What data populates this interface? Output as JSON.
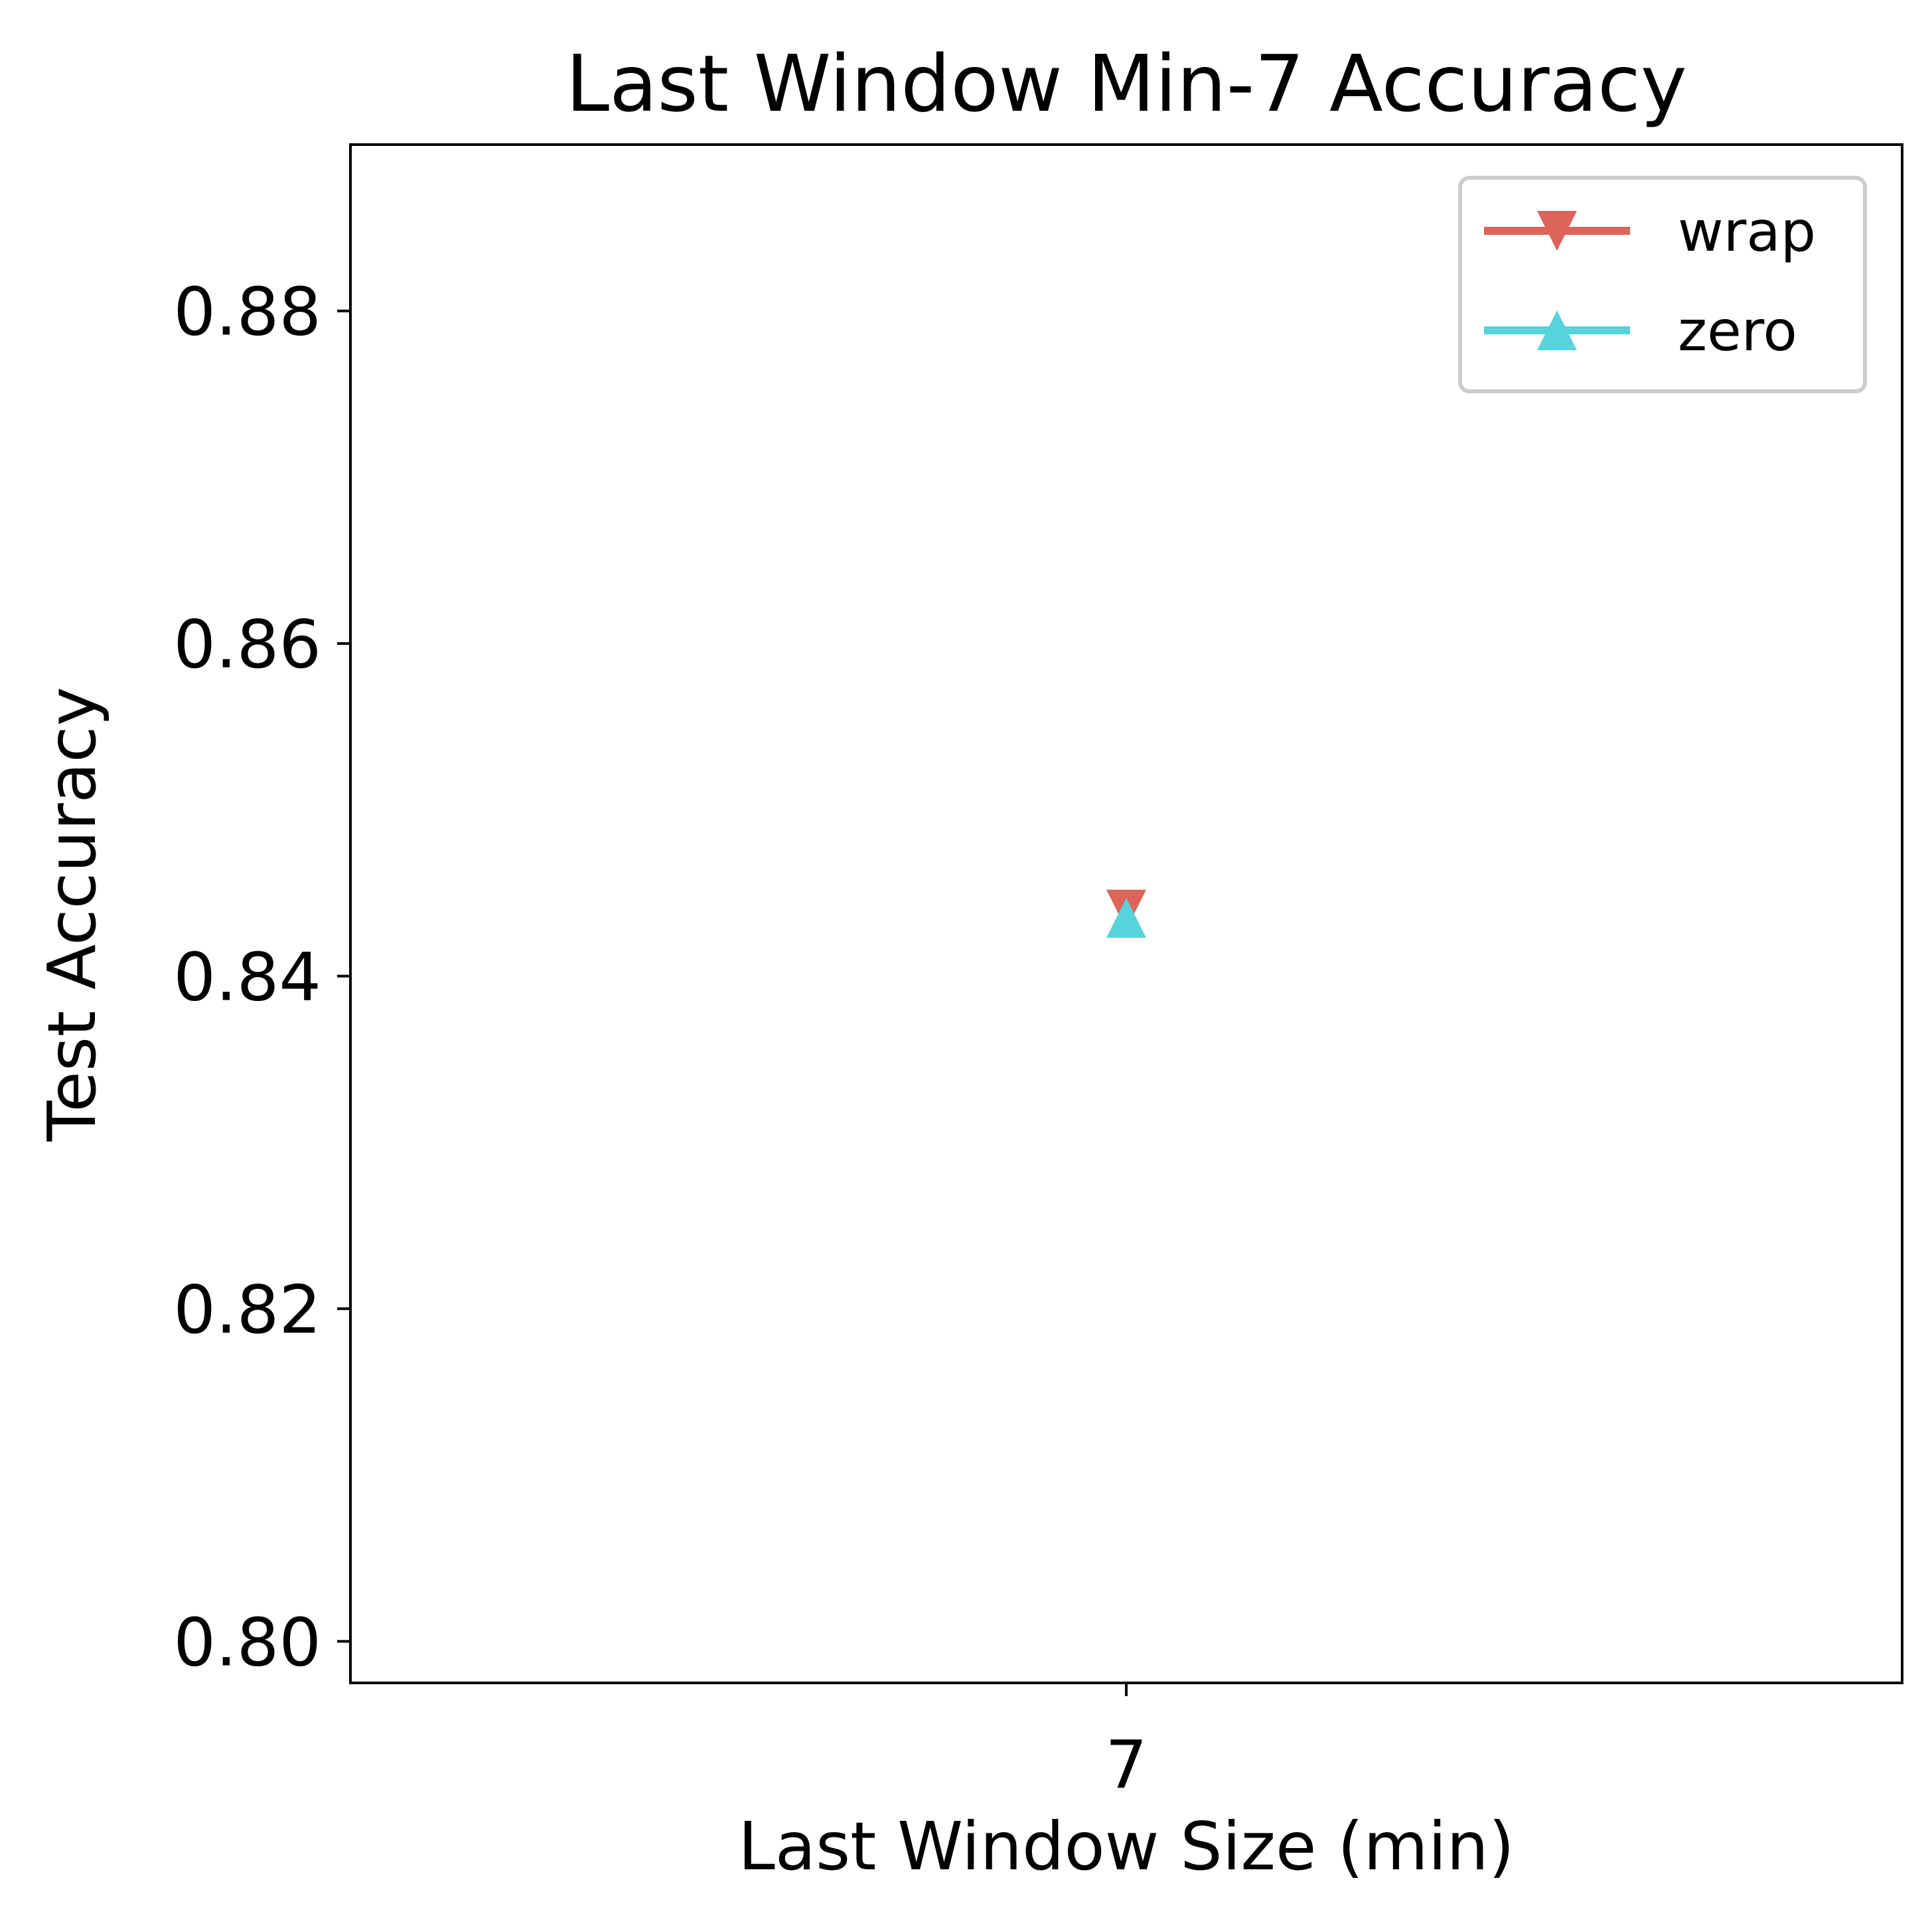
{
  "chart_data": {
    "type": "line",
    "title": "Last Window Min-7 Accuracy",
    "xlabel": "Last Window Size (min)",
    "ylabel": "Test Accuracy",
    "x_categories": [
      "7"
    ],
    "ylim": [
      0.7975,
      0.89
    ],
    "yticks": [
      0.8,
      0.82,
      0.84,
      0.86,
      0.88
    ],
    "ytick_labels": [
      "0.80",
      "0.82",
      "0.84",
      "0.86",
      "0.88"
    ],
    "grid": false,
    "legend_position": "top-right",
    "series": [
      {
        "name": "wrap",
        "marker": "triangle-down",
        "color": "#dc6459",
        "x": [
          "7"
        ],
        "values": [
          0.844
        ]
      },
      {
        "name": "zero",
        "marker": "triangle-up",
        "color": "#57d3dc",
        "x": [
          "7"
        ],
        "values": [
          0.8435
        ]
      }
    ]
  }
}
